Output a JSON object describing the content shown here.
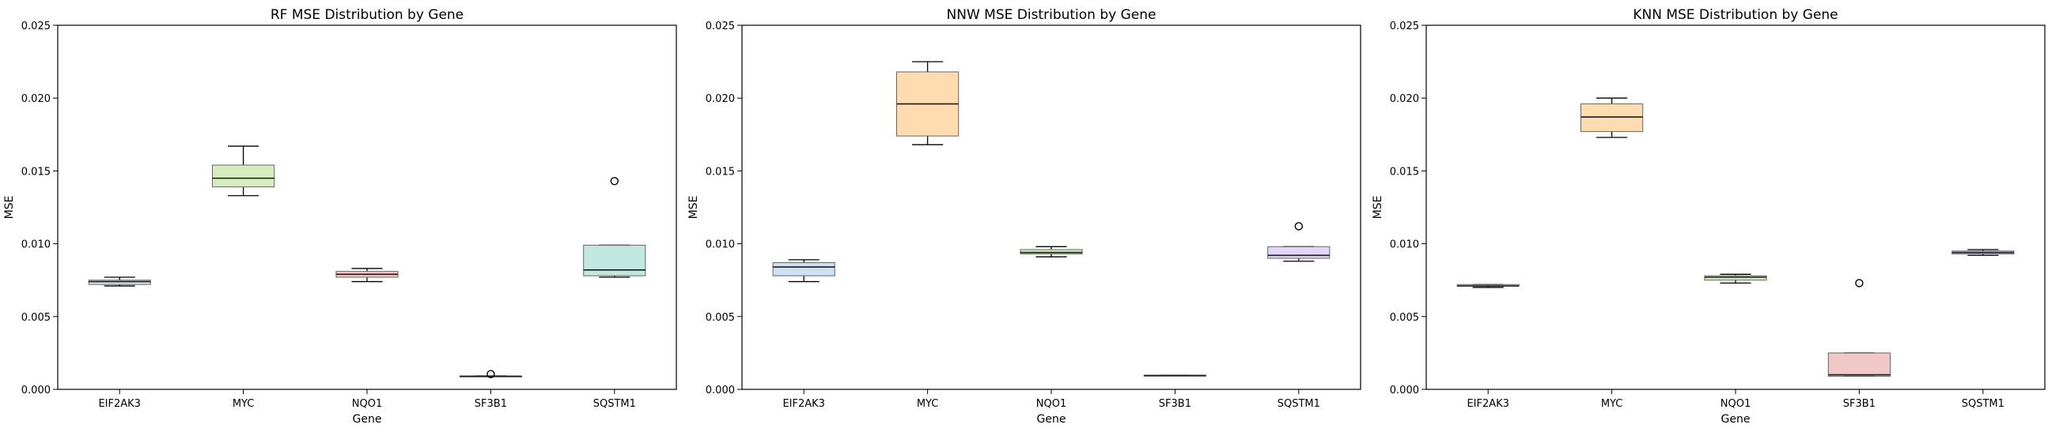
{
  "figure": {
    "panels": [
      {
        "title": "RF MSE Distribution by Gene"
      },
      {
        "title": "NNW MSE Distribution by Gene"
      },
      {
        "title": "KNN MSE Distribution by Gene"
      }
    ]
  },
  "chart_data": [
    {
      "type": "box",
      "title": "RF MSE Distribution by Gene",
      "xlabel": "Gene",
      "ylabel": "MSE",
      "ylim": [
        0,
        0.025
      ],
      "yticks": [
        "0.000",
        "0.005",
        "0.010",
        "0.015",
        "0.020",
        "0.025"
      ],
      "categories": [
        "EIF2AK3",
        "MYC",
        "NQO1",
        "SF3B1",
        "SQSTM1"
      ],
      "colors": [
        "#a6cee3",
        "#b2df8a",
        "#fb9a99",
        "#fdbf6f",
        "#8dd3c7"
      ],
      "boxes": [
        {
          "min": 0.0071,
          "q1": 0.0072,
          "median": 0.0074,
          "q3": 0.0075,
          "max": 0.0077,
          "outliers": []
        },
        {
          "min": 0.0133,
          "q1": 0.0139,
          "median": 0.0145,
          "q3": 0.0154,
          "max": 0.0167,
          "outliers": []
        },
        {
          "min": 0.0074,
          "q1": 0.0077,
          "median": 0.0079,
          "q3": 0.0081,
          "max": 0.0083,
          "outliers": []
        },
        {
          "min": 0.00088,
          "q1": 0.00089,
          "median": 0.0009,
          "q3": 0.00091,
          "max": 0.00092,
          "outliers": [
            0.00105
          ]
        },
        {
          "min": 0.0077,
          "q1": 0.0078,
          "median": 0.0082,
          "q3": 0.0099,
          "max": 0.0099,
          "outliers": [
            0.0143
          ]
        }
      ]
    },
    {
      "type": "box",
      "title": "NNW MSE Distribution by Gene",
      "xlabel": "Gene",
      "ylabel": "MSE",
      "ylim": [
        0,
        0.025
      ],
      "yticks": [
        "0.000",
        "0.005",
        "0.010",
        "0.015",
        "0.020",
        "0.025"
      ],
      "categories": [
        "EIF2AK3",
        "MYC",
        "NQO1",
        "SF3B1",
        "SQSTM1"
      ],
      "colors": [
        "#a6c8e8",
        "#fdbf6f",
        "#b2df8a",
        "#fb9a99",
        "#cab2f0"
      ],
      "boxes": [
        {
          "min": 0.0074,
          "q1": 0.0078,
          "median": 0.0084,
          "q3": 0.0087,
          "max": 0.0089,
          "outliers": []
        },
        {
          "min": 0.0168,
          "q1": 0.0174,
          "median": 0.0196,
          "q3": 0.0218,
          "max": 0.0225,
          "outliers": []
        },
        {
          "min": 0.0091,
          "q1": 0.0093,
          "median": 0.0094,
          "q3": 0.0096,
          "max": 0.0098,
          "outliers": []
        },
        {
          "min": 0.00093,
          "q1": 0.00094,
          "median": 0.00095,
          "q3": 0.00096,
          "max": 0.00097,
          "outliers": []
        },
        {
          "min": 0.0088,
          "q1": 0.009,
          "median": 0.0092,
          "q3": 0.0098,
          "max": 0.0098,
          "outliers": [
            0.0112
          ]
        }
      ]
    },
    {
      "type": "box",
      "title": "KNN MSE Distribution by Gene",
      "xlabel": "Gene",
      "ylabel": "MSE",
      "ylim": [
        0,
        0.025
      ],
      "yticks": [
        "0.000",
        "0.005",
        "0.010",
        "0.015",
        "0.020",
        "0.025"
      ],
      "categories": [
        "EIF2AK3",
        "MYC",
        "NQO1",
        "SF3B1",
        "SQSTM1"
      ],
      "colors": [
        "#a6cee3",
        "#fdbf6f",
        "#b2df8a",
        "#e39a9a",
        "#b7b4e8"
      ],
      "boxes": [
        {
          "min": 0.007,
          "q1": 0.0071,
          "median": 0.0071,
          "q3": 0.0072,
          "max": 0.0072,
          "outliers": []
        },
        {
          "min": 0.0173,
          "q1": 0.0177,
          "median": 0.0187,
          "q3": 0.0196,
          "max": 0.02,
          "outliers": []
        },
        {
          "min": 0.0073,
          "q1": 0.0075,
          "median": 0.0077,
          "q3": 0.0078,
          "max": 0.0079,
          "outliers": []
        },
        {
          "min": 0.0009,
          "q1": 0.0009,
          "median": 0.001,
          "q3": 0.0025,
          "max": 0.0025,
          "outliers": [
            0.0073
          ]
        },
        {
          "min": 0.0092,
          "q1": 0.0093,
          "median": 0.0094,
          "q3": 0.0095,
          "max": 0.0096,
          "outliers": []
        }
      ]
    }
  ]
}
